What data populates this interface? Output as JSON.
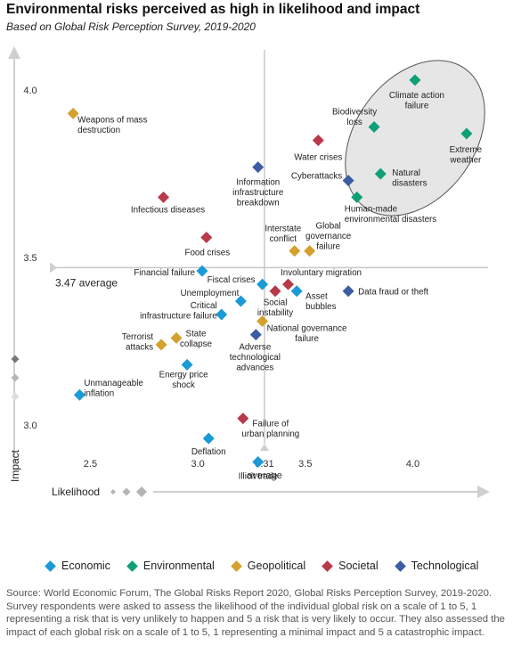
{
  "header": {
    "title": "Environmental risks perceived as high in likelihood and impact",
    "subtitle": "Based on Global Risk Perception Survey, 2019-2020"
  },
  "colors": {
    "Economic": "#1a9ad6",
    "Environmental": "#0f9f78",
    "Geopolitical": "#d4a12e",
    "Societal": "#b8394a",
    "Technological": "#3d5ca3",
    "axis": "#cfcfcf",
    "refline": "#c8c8c8",
    "highlight_fill": "#e6e6e6",
    "highlight_stroke": "#555555"
  },
  "chart_data": {
    "type": "scatter",
    "title": "Environmental risks perceived as high in likelihood and impact",
    "xlabel": "Likelihood",
    "ylabel": "Impact",
    "xlim": [
      2.32,
      4.35
    ],
    "ylim": [
      2.83,
      4.12
    ],
    "x_ticks": [
      {
        "value": 2.5,
        "label": "2.5"
      },
      {
        "value": 3.0,
        "label": "3.0"
      },
      {
        "value": 3.5,
        "label": "3.5"
      },
      {
        "value": 4.0,
        "label": "4.0"
      }
    ],
    "y_ticks": [
      {
        "value": 3.0,
        "label": "3.0"
      },
      {
        "value": 3.5,
        "label": "3.5"
      },
      {
        "value": 4.0,
        "label": "4.0"
      }
    ],
    "reference_lines": {
      "x": {
        "value": 3.31,
        "label_value": "3.31",
        "label_text": "average"
      },
      "y": {
        "value": 3.47,
        "label": "3.47 average"
      }
    },
    "highlight": "Environmental risks cluster (ellipse)",
    "series": [
      {
        "name": "Economic",
        "points": [
          {
            "label": "Financial failure",
            "x": 3.02,
            "y": 3.46
          },
          {
            "label": "Fiscal crises",
            "x": 3.3,
            "y": 3.42
          },
          {
            "label": "Asset bubbles",
            "x": 3.46,
            "y": 3.4
          },
          {
            "label": "Unemployment",
            "x": 3.2,
            "y": 3.37
          },
          {
            "label": "Critical infrastructure failure",
            "x": 3.11,
            "y": 3.33
          },
          {
            "label": "Energy price shock",
            "x": 2.95,
            "y": 3.18
          },
          {
            "label": "Unmanageable inflation",
            "x": 2.45,
            "y": 3.09
          },
          {
            "label": "Deflation",
            "x": 3.05,
            "y": 2.96
          },
          {
            "label": "Illicit trade",
            "x": 3.28,
            "y": 2.89
          }
        ]
      },
      {
        "name": "Environmental",
        "points": [
          {
            "label": "Climate action failure",
            "x": 4.01,
            "y": 4.03
          },
          {
            "label": "Biodiversity loss",
            "x": 3.82,
            "y": 3.89
          },
          {
            "label": "Extreme weather",
            "x": 4.25,
            "y": 3.87
          },
          {
            "label": "Natural disasters",
            "x": 3.85,
            "y": 3.75
          },
          {
            "label": "Human-made environmental disasters",
            "x": 3.74,
            "y": 3.68
          }
        ]
      },
      {
        "name": "Geopolitical",
        "points": [
          {
            "label": "Weapons of mass destruction",
            "x": 2.42,
            "y": 3.93
          },
          {
            "label": "Interstate conflict",
            "x": 3.45,
            "y": 3.52
          },
          {
            "label": "Global governance failure",
            "x": 3.52,
            "y": 3.52
          },
          {
            "label": "National governance failure",
            "x": 3.3,
            "y": 3.31
          },
          {
            "label": "Terrorist attacks",
            "x": 2.83,
            "y": 3.24
          },
          {
            "label": "State collapse",
            "x": 2.9,
            "y": 3.26
          }
        ]
      },
      {
        "name": "Societal",
        "points": [
          {
            "label": "Water crises",
            "x": 3.56,
            "y": 3.85
          },
          {
            "label": "Infectious diseases",
            "x": 2.84,
            "y": 3.68
          },
          {
            "label": "Food crises",
            "x": 3.04,
            "y": 3.56
          },
          {
            "label": "Involuntary migration",
            "x": 3.42,
            "y": 3.42
          },
          {
            "label": "Social instability",
            "x": 3.36,
            "y": 3.4
          },
          {
            "label": "Failure of urban planning",
            "x": 3.21,
            "y": 3.02
          }
        ]
      },
      {
        "name": "Technological",
        "points": [
          {
            "label": "Information infrastructure breakdown",
            "x": 3.28,
            "y": 3.77
          },
          {
            "label": "Cyberattacks",
            "x": 3.7,
            "y": 3.73
          },
          {
            "label": "Data fraud or theft",
            "x": 3.7,
            "y": 3.4
          },
          {
            "label": "Adverse technological advances",
            "x": 3.27,
            "y": 3.27
          }
        ]
      }
    ]
  },
  "source": "Source: World Economic Forum, The Global Risks Report 2020, Global Risks Perception Survey, 2019-2020. Survey respondents were asked to assess the likelihood of the individual global risk on a scale of 1 to 5, 1 representing a risk that is very unlikely to happen and 5 a risk that is very likely to occur. They also assessed the impact of each global risk on a scale of 1 to 5, 1 representing a minimal impact and 5 a catastrophic impact."
}
